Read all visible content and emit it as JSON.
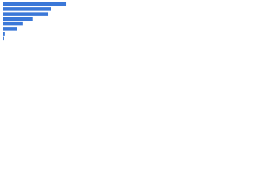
{
  "chart_data": {
    "type": "bar",
    "orientation": "horizontal",
    "categories": [
      null,
      null,
      null,
      null,
      null,
      null,
      null,
      null
    ],
    "values": [
      87,
      66,
      62,
      41,
      27,
      19,
      2,
      1
    ],
    "color": "#3b78d8",
    "xlim": [
      0,
      100
    ]
  }
}
